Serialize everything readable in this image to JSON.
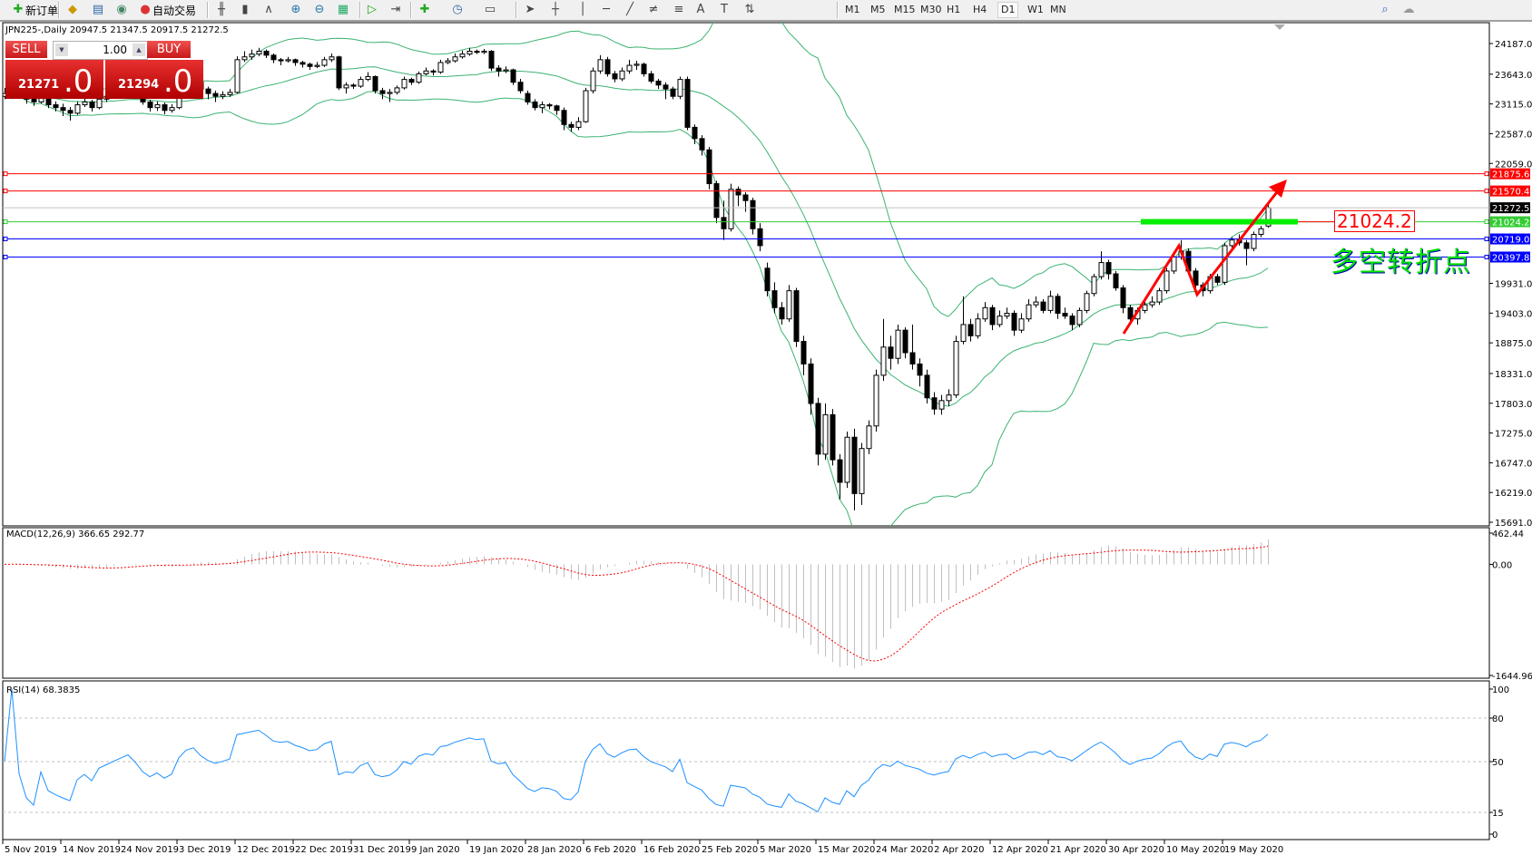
{
  "toolbar": {
    "new_order_label": "新订单",
    "auto_trading_label": "自动交易",
    "icons": [
      "new-order-icon",
      "history-icon",
      "data-window-icon",
      "signals-icon",
      "auto-trading-icon",
      "bar-chart-icon",
      "candlestick-icon",
      "line-chart-icon",
      "zoom-in-icon",
      "zoom-out-icon",
      "tile-windows-icon",
      "autoscroll-icon",
      "chart-shift-icon",
      "indicators-icon",
      "periods-icon",
      "templates-icon",
      "cursor-icon",
      "crosshair-icon",
      "vertical-line-icon",
      "horizontal-line-icon",
      "trendline-icon",
      "equidistant-channel-icon",
      "fibonacci-icon",
      "text-icon",
      "text-label-icon",
      "arrows-icon",
      "search-icon",
      "chat-icon"
    ],
    "timeframes": [
      "M1",
      "M5",
      "M15",
      "M30",
      "H1",
      "H4",
      "D1",
      "W1",
      "MN"
    ],
    "active_timeframe": "D1"
  },
  "chart": {
    "title": "JPN225-,Daily  20947.5 21347.5 20917.5 21272.5",
    "one_click": {
      "sell_label": "SELL",
      "buy_label": "BUY",
      "lot": "1.00",
      "sell_price": "21271",
      "sell_big": ".0",
      "buy_price": "21294",
      "buy_big": ".0"
    }
  },
  "chart_data": {
    "type": "candlestick",
    "symbol": "JPN225-",
    "timeframe": "Daily",
    "last_ohlc": {
      "open": 20947.5,
      "high": 21347.5,
      "low": 20917.5,
      "close": 21272.5
    },
    "y_ticks": [
      "24187.0",
      "23643.0",
      "23115.0",
      "22587.0",
      "22059.0",
      "19931.0",
      "19403.0",
      "18875.0",
      "18331.0",
      "17803.0",
      "17275.0",
      "16747.0",
      "16219.0",
      "15691.0"
    ],
    "y_range": [
      15691.0,
      24187.0
    ],
    "x_labels": [
      "5 Nov 2019",
      "14 Nov 2019",
      "24 Nov 2019",
      "3 Dec 2019",
      "12 Dec 2019",
      "22 Dec 2019",
      "31 Dec 2019",
      "9 Jan 2020",
      "19 Jan 2020",
      "28 Jan 2020",
      "6 Feb 2020",
      "16 Feb 2020",
      "25 Feb 2020",
      "5 Mar 2020",
      "15 Mar 2020",
      "24 Mar 2020",
      "2 Apr 2020",
      "12 Apr 2020",
      "21 Apr 2020",
      "30 Apr 2020",
      "10 May 2020",
      "19 May 2020"
    ],
    "colors": {
      "bull_body": "#ffffff",
      "bear_body": "#000000",
      "bands": "#3cb371",
      "macd_hist": "#c0c0c0",
      "macd_signal": "#ff0000",
      "rsi": "#1e90ff"
    },
    "bollinger": {
      "period": 20,
      "deviation": 2
    },
    "ohlc": [
      [
        23250,
        23400,
        23200,
        23300
      ],
      [
        23300,
        23420,
        23260,
        23350
      ],
      [
        23350,
        23380,
        23220,
        23280
      ],
      [
        23280,
        23310,
        23120,
        23200
      ],
      [
        23200,
        23260,
        23080,
        23150
      ],
      [
        23150,
        23320,
        23120,
        23250
      ],
      [
        23250,
        23270,
        23040,
        23100
      ],
      [
        23100,
        23160,
        22980,
        23050
      ],
      [
        23050,
        23120,
        22900,
        23000
      ],
      [
        23000,
        23060,
        22820,
        22950
      ],
      [
        22950,
        23160,
        22920,
        23100
      ],
      [
        23100,
        23230,
        23060,
        23150
      ],
      [
        23150,
        23190,
        22980,
        23050
      ],
      [
        23050,
        23260,
        23020,
        23200
      ],
      [
        23200,
        23320,
        23150,
        23250
      ],
      [
        23250,
        23380,
        23210,
        23300
      ],
      [
        23300,
        23420,
        23260,
        23350
      ],
      [
        23350,
        23460,
        23300,
        23400
      ],
      [
        23400,
        23430,
        23250,
        23300
      ],
      [
        23300,
        23340,
        23100,
        23150
      ],
      [
        23150,
        23190,
        22980,
        23050
      ],
      [
        23050,
        23160,
        22990,
        23100
      ],
      [
        23100,
        23140,
        22930,
        23000
      ],
      [
        23000,
        23110,
        22960,
        23050
      ],
      [
        23050,
        23360,
        23020,
        23300
      ],
      [
        23300,
        23500,
        23270,
        23450
      ],
      [
        23450,
        23560,
        23400,
        23500
      ],
      [
        23500,
        23530,
        23330,
        23380
      ],
      [
        23380,
        23420,
        23200,
        23300
      ],
      [
        23300,
        23350,
        23150,
        23250
      ],
      [
        23250,
        23340,
        23200,
        23280
      ],
      [
        23280,
        23380,
        23240,
        23320
      ],
      [
        23320,
        23960,
        23300,
        23900
      ],
      [
        23900,
        24050,
        23860,
        23950
      ],
      [
        23950,
        24080,
        23900,
        24000
      ],
      [
        24000,
        24110,
        23960,
        24050
      ],
      [
        24050,
        24080,
        23930,
        23980
      ],
      [
        23980,
        24010,
        23840,
        23900
      ],
      [
        23900,
        23930,
        23800,
        23880
      ],
      [
        23880,
        23950,
        23850,
        23900
      ],
      [
        23900,
        23920,
        23790,
        23850
      ],
      [
        23850,
        23880,
        23760,
        23820
      ],
      [
        23820,
        23850,
        23720,
        23780
      ],
      [
        23780,
        23860,
        23750,
        23800
      ],
      [
        23800,
        23950,
        23770,
        23900
      ],
      [
        23900,
        24010,
        23860,
        23950
      ],
      [
        23950,
        23970,
        23360,
        23400
      ],
      [
        23400,
        23500,
        23300,
        23450
      ],
      [
        23450,
        23480,
        23380,
        23430
      ],
      [
        23430,
        23600,
        23400,
        23550
      ],
      [
        23550,
        23680,
        23520,
        23600
      ],
      [
        23600,
        23620,
        23300,
        23350
      ],
      [
        23350,
        23400,
        23200,
        23300
      ],
      [
        23300,
        23380,
        23150,
        23320
      ],
      [
        23320,
        23440,
        23280,
        23400
      ],
      [
        23400,
        23600,
        23370,
        23550
      ],
      [
        23550,
        23580,
        23450,
        23500
      ],
      [
        23500,
        23690,
        23470,
        23650
      ],
      [
        23650,
        23760,
        23620,
        23700
      ],
      [
        23700,
        23730,
        23620,
        23680
      ],
      [
        23680,
        23900,
        23650,
        23850
      ],
      [
        23850,
        23930,
        23820,
        23880
      ],
      [
        23880,
        24010,
        23850,
        23950
      ],
      [
        23950,
        24060,
        23920,
        24000
      ],
      [
        24000,
        24110,
        23970,
        24050
      ],
      [
        24050,
        24080,
        24000,
        24030
      ],
      [
        24030,
        24090,
        24000,
        24050
      ],
      [
        24050,
        24070,
        23700,
        23750
      ],
      [
        23750,
        23800,
        23600,
        23700
      ],
      [
        23700,
        23780,
        23660,
        23720
      ],
      [
        23720,
        23740,
        23450,
        23500
      ],
      [
        23500,
        23560,
        23300,
        23350
      ],
      [
        23300,
        23350,
        23100,
        23150
      ],
      [
        23150,
        23200,
        23000,
        23050
      ],
      [
        23050,
        23160,
        22950,
        23100
      ],
      [
        23100,
        23130,
        23020,
        23080
      ],
      [
        23080,
        23100,
        22920,
        23000
      ],
      [
        23000,
        23050,
        22650,
        22750
      ],
      [
        22750,
        22800,
        22620,
        22700
      ],
      [
        22700,
        22880,
        22650,
        22800
      ],
      [
        22800,
        23400,
        22780,
        23350
      ],
      [
        23350,
        23760,
        23300,
        23700
      ],
      [
        23700,
        23980,
        23650,
        23900
      ],
      [
        23900,
        23950,
        23600,
        23650
      ],
      [
        23650,
        23700,
        23500,
        23560
      ],
      [
        23560,
        23760,
        23520,
        23700
      ],
      [
        23700,
        23900,
        23650,
        23800
      ],
      [
        23800,
        23880,
        23720,
        23820
      ],
      [
        23820,
        23850,
        23600,
        23650
      ],
      [
        23650,
        23700,
        23480,
        23520
      ],
      [
        23520,
        23560,
        23380,
        23450
      ],
      [
        23450,
        23500,
        23200,
        23380
      ],
      [
        23380,
        23420,
        23200,
        23250
      ],
      [
        23250,
        23600,
        23200,
        23550
      ],
      [
        23550,
        23600,
        22650,
        22700
      ],
      [
        22700,
        22750,
        22400,
        22500
      ],
      [
        22500,
        22560,
        22200,
        22300
      ],
      [
        22300,
        22350,
        21600,
        21700
      ],
      [
        21700,
        21750,
        21000,
        21100
      ],
      [
        21100,
        21400,
        20700,
        20900
      ],
      [
        20900,
        21700,
        20850,
        21600
      ],
      [
        21600,
        21650,
        21300,
        21500
      ],
      [
        21500,
        21550,
        21200,
        21400
      ],
      [
        21400,
        21450,
        20800,
        20900
      ],
      [
        20900,
        21000,
        20500,
        20600
      ],
      [
        20200,
        20300,
        19700,
        19800
      ],
      [
        19800,
        19950,
        19400,
        19500
      ],
      [
        19500,
        19600,
        19200,
        19300
      ],
      [
        19300,
        19900,
        19250,
        19800
      ],
      [
        19800,
        19850,
        18800,
        18900
      ],
      [
        18900,
        19000,
        18300,
        18500
      ],
      [
        18500,
        18600,
        17600,
        17800
      ],
      [
        17800,
        17900,
        16700,
        16900
      ],
      [
        16900,
        17800,
        16800,
        17600
      ],
      [
        17600,
        17700,
        16700,
        16800
      ],
      [
        16800,
        16900,
        16100,
        16400
      ],
      [
        16400,
        17300,
        16300,
        17200
      ],
      [
        17200,
        17350,
        15900,
        16200
      ],
      [
        16200,
        17100,
        16000,
        17000
      ],
      [
        17000,
        17500,
        16900,
        17400
      ],
      [
        17400,
        18400,
        17300,
        18300
      ],
      [
        18300,
        19300,
        18200,
        18800
      ],
      [
        18800,
        19000,
        18400,
        18600
      ],
      [
        18600,
        19200,
        18500,
        19100
      ],
      [
        19100,
        19150,
        18600,
        18700
      ],
      [
        18700,
        19200,
        18400,
        18500
      ],
      [
        18500,
        18600,
        18100,
        18300
      ],
      [
        18300,
        18400,
        17800,
        17900
      ],
      [
        17900,
        18000,
        17600,
        17700
      ],
      [
        17700,
        17950,
        17600,
        17850
      ],
      [
        17850,
        18050,
        17750,
        17950
      ],
      [
        17950,
        19000,
        17900,
        18900
      ],
      [
        18900,
        19700,
        18850,
        19200
      ],
      [
        19200,
        19300,
        18900,
        19000
      ],
      [
        19000,
        19400,
        18950,
        19300
      ],
      [
        19300,
        19600,
        19250,
        19500
      ],
      [
        19500,
        19550,
        19100,
        19200
      ],
      [
        19200,
        19450,
        19150,
        19350
      ],
      [
        19350,
        19500,
        19300,
        19400
      ],
      [
        19400,
        19450,
        19000,
        19100
      ],
      [
        19100,
        19400,
        19050,
        19300
      ],
      [
        19300,
        19650,
        19250,
        19550
      ],
      [
        19550,
        19700,
        19500,
        19600
      ],
      [
        19600,
        19650,
        19400,
        19450
      ],
      [
        19450,
        19800,
        19400,
        19700
      ],
      [
        19700,
        19750,
        19300,
        19400
      ],
      [
        19400,
        19500,
        19300,
        19350
      ],
      [
        19350,
        19400,
        19100,
        19200
      ],
      [
        19200,
        19500,
        19150,
        19450
      ],
      [
        19450,
        19800,
        19400,
        19750
      ],
      [
        19750,
        20100,
        19700,
        20050
      ],
      [
        20050,
        20500,
        20000,
        20300
      ],
      [
        20300,
        20350,
        20000,
        20100
      ],
      [
        20100,
        20150,
        19800,
        19850
      ],
      [
        19850,
        19900,
        19400,
        19500
      ],
      [
        19500,
        19550,
        19250,
        19300
      ],
      [
        19300,
        19500,
        19200,
        19450
      ],
      [
        19450,
        19600,
        19400,
        19550
      ],
      [
        19550,
        19700,
        19500,
        19600
      ],
      [
        19600,
        19850,
        19550,
        19800
      ],
      [
        19800,
        20200,
        19750,
        20150
      ],
      [
        20150,
        20450,
        20100,
        20400
      ],
      [
        20400,
        20700,
        20350,
        20500
      ],
      [
        20500,
        20550,
        20100,
        20150
      ],
      [
        20150,
        20200,
        19850,
        19900
      ],
      [
        19900,
        19950,
        19700,
        19800
      ],
      [
        19800,
        20100,
        19750,
        20050
      ],
      [
        20050,
        20100,
        19900,
        19950
      ],
      [
        19950,
        20650,
        19900,
        20600
      ],
      [
        20600,
        20750,
        20550,
        20700
      ],
      [
        20700,
        20800,
        20600,
        20650
      ],
      [
        20650,
        20700,
        20250,
        20550
      ],
      [
        20550,
        20850,
        20500,
        20800
      ],
      [
        20800,
        20950,
        20750,
        20900
      ],
      [
        20947.5,
        21347.5,
        20917.5,
        21272.5
      ]
    ],
    "hlines": [
      {
        "value": 21875.6,
        "label": "21875.6",
        "color": "#ff0000"
      },
      {
        "value": 21570.4,
        "label": "21570.4",
        "color": "#ff0000"
      },
      {
        "value": 21272.5,
        "label": "21272.5",
        "color": "#000000",
        "line": "#c0c0c0"
      },
      {
        "value": 21024.2,
        "label": "21024.2",
        "color": "#33cc33"
      },
      {
        "value": 20719.0,
        "label": "20719.0",
        "color": "#0000ff"
      },
      {
        "value": 20397.8,
        "label": "20397.8",
        "color": "#0000ff"
      }
    ],
    "annotations": {
      "price_text": "21024.2",
      "cn_text": "多空转折点",
      "arrow_color": "#ff0000",
      "zone_color": "#00ee00"
    },
    "macd": {
      "label": "MACD(12,26,9) 366.65 292.77",
      "fast": 12,
      "slow": 26,
      "signal": 9,
      "y_ticks": [
        "462.44",
        "0.00",
        "-1644.96"
      ],
      "y_range": [
        -1644.96,
        462.44
      ]
    },
    "rsi": {
      "label": "RSI(14) 68.3835",
      "period": 14,
      "levels": [
        80,
        50,
        15
      ],
      "y_ticks": [
        "100",
        "80",
        "50",
        "15",
        "0"
      ]
    }
  }
}
